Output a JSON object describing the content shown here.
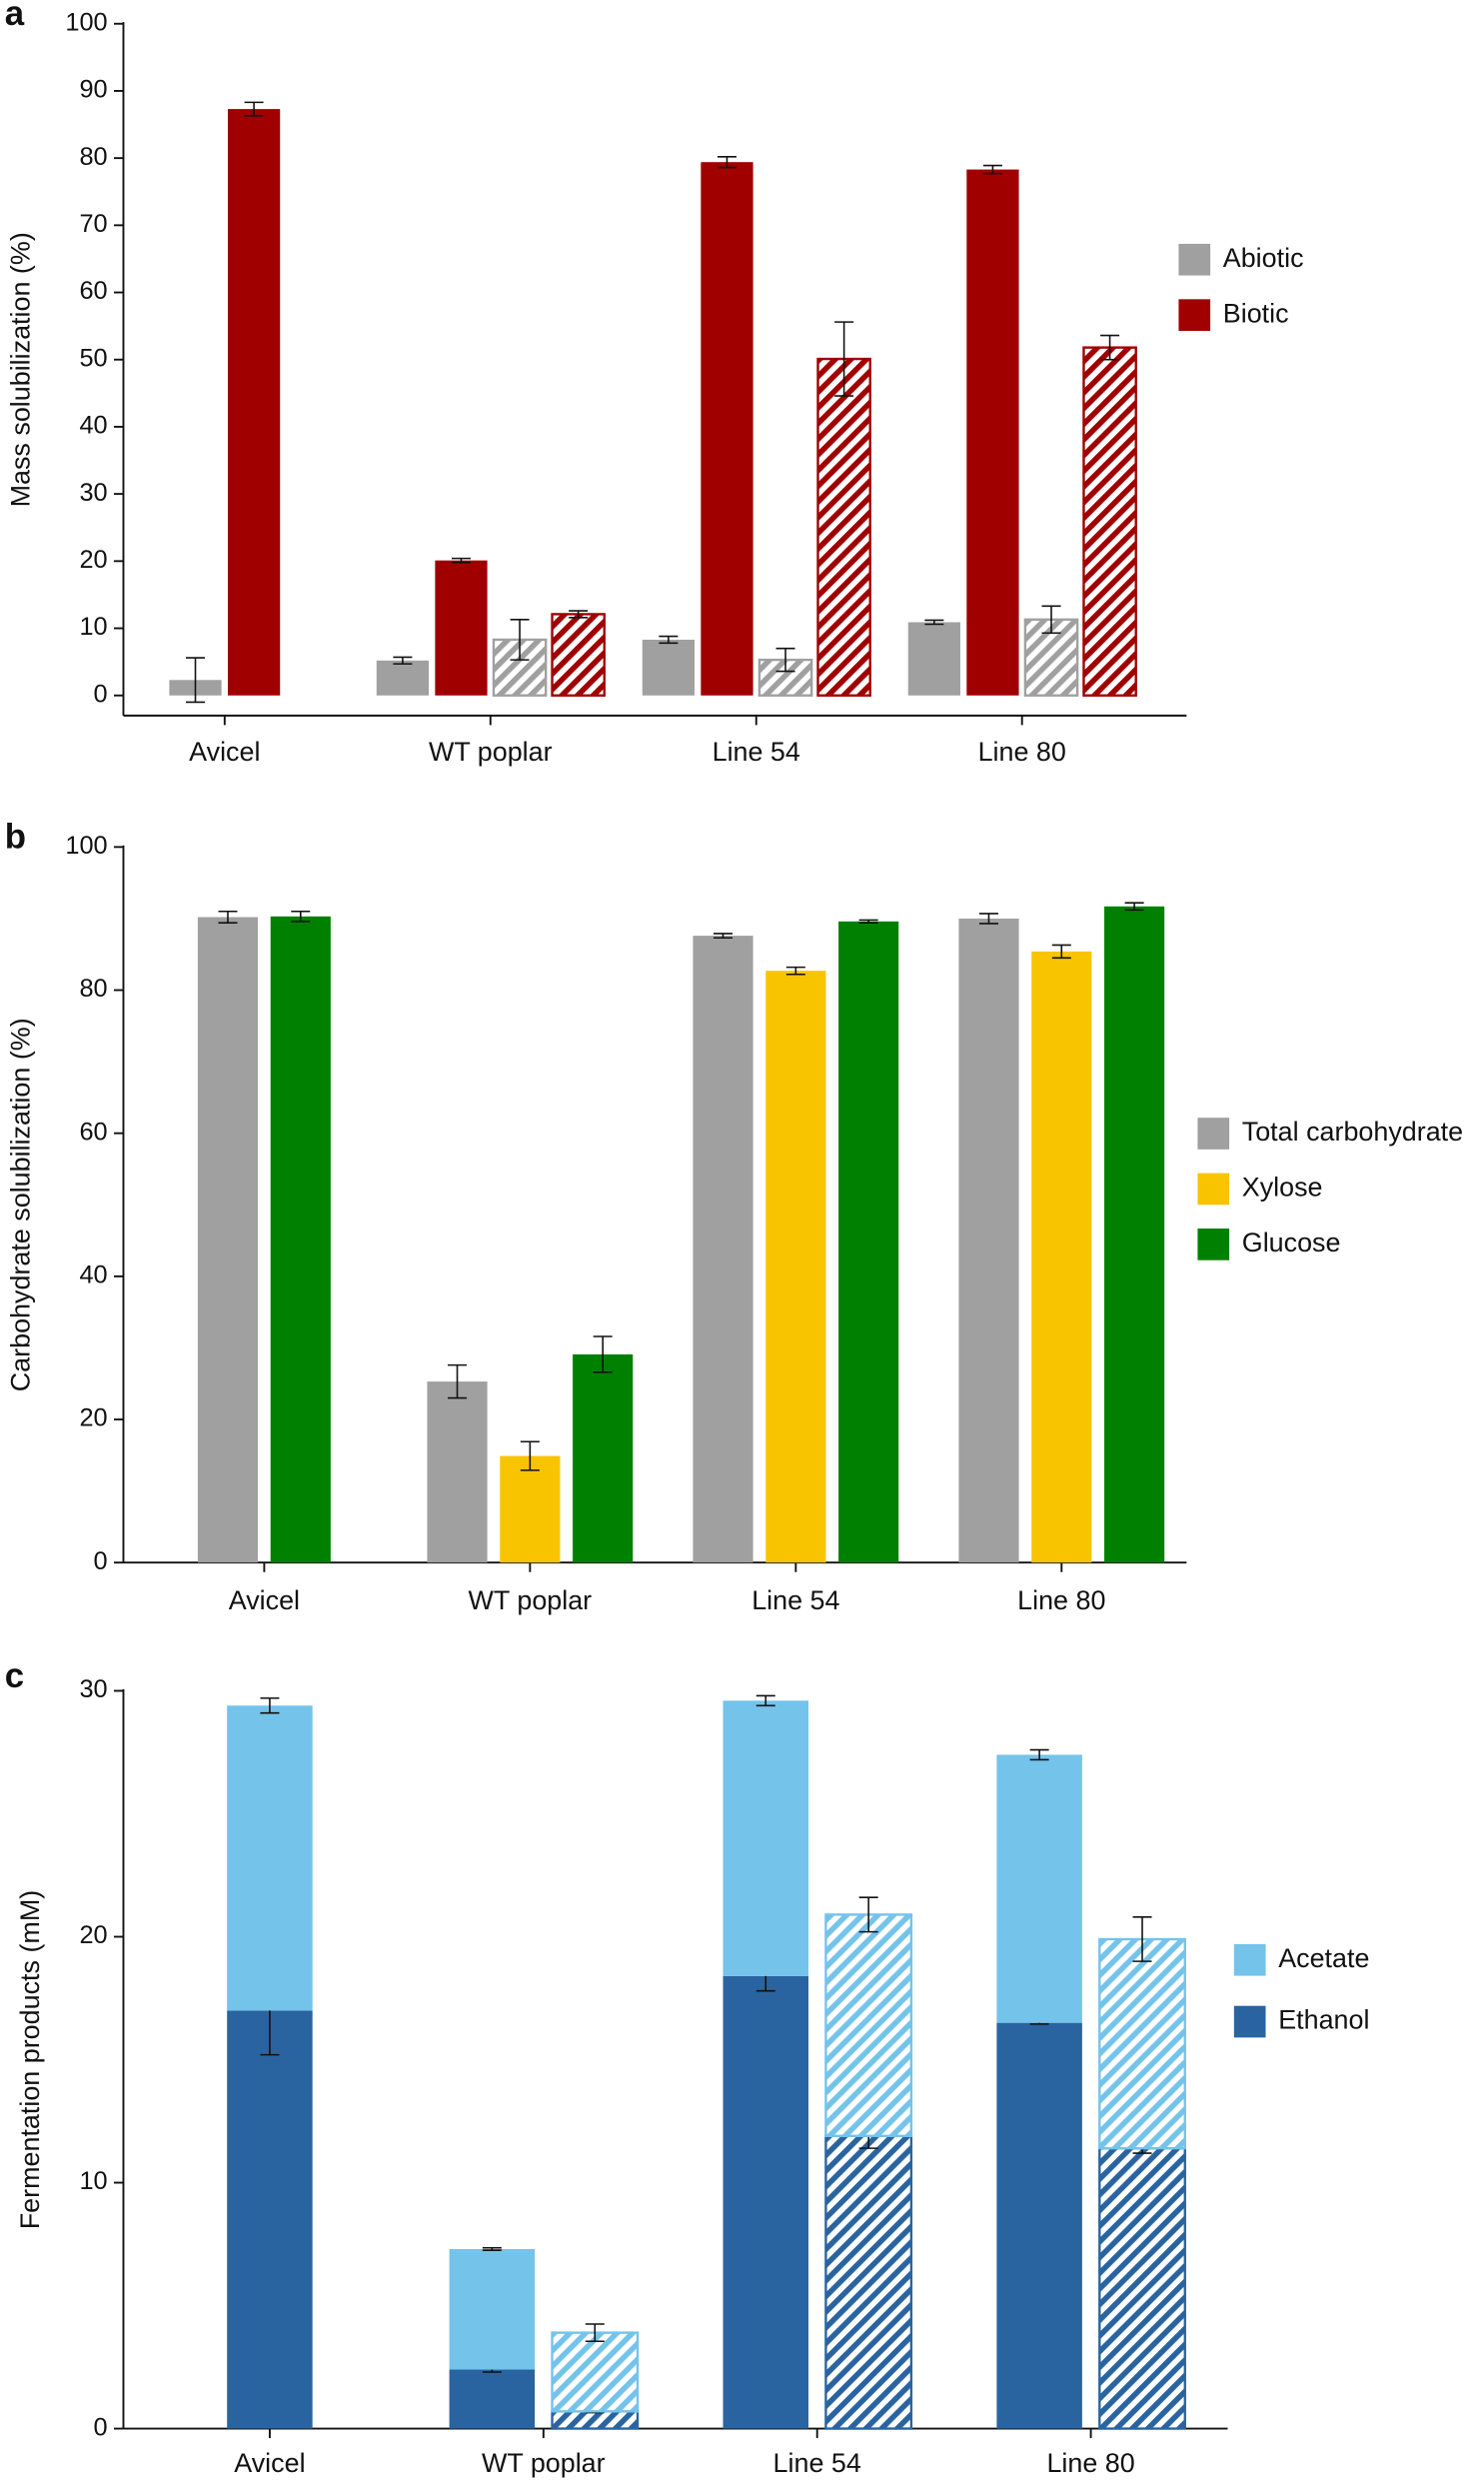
{
  "chart_data": [
    {
      "type": "bar",
      "panel_label": "a",
      "ylabel": "Mass solubilization (%)",
      "categories": [
        "Avicel",
        "WT poplar",
        "Line 54",
        "Line 80"
      ],
      "series": [
        {
          "name": "Abiotic",
          "color": "#a0a0a0",
          "values": [
            2.3,
            5.2,
            8.3,
            10.9
          ],
          "errors": [
            3.3,
            0.5,
            0.5,
            0.3
          ],
          "hatched_values": [
            null,
            8.3,
            5.3,
            11.3
          ],
          "hatched_errors": [
            null,
            3,
            1.7,
            2
          ]
        },
        {
          "name": "Biotic",
          "color": "#a00000",
          "values": [
            87.3,
            20.1,
            79.4,
            78.3
          ],
          "errors": [
            1,
            0.3,
            0.8,
            0.6
          ],
          "hatched_values": [
            null,
            12.1,
            50.1,
            51.8
          ],
          "hatched_errors": [
            null,
            0.5,
            5.5,
            1.8
          ]
        }
      ],
      "ylim": [
        -3,
        100
      ],
      "yticks": [
        0,
        10,
        20,
        30,
        40,
        50,
        60,
        70,
        80,
        90,
        100
      ]
    },
    {
      "type": "bar",
      "panel_label": "b",
      "ylabel": "Carbohydrate solubilization (%)",
      "categories": [
        "Avicel",
        "WT poplar",
        "Line 54",
        "Line 80"
      ],
      "series": [
        {
          "name": "Total carbohydrate",
          "color": "#a0a0a0",
          "values": [
            90.2,
            25.3,
            87.6,
            90.0
          ],
          "errors": [
            0.8,
            2.3,
            0.3,
            0.7
          ]
        },
        {
          "name": "Xylose",
          "color": "#f8c400",
          "values": [
            null,
            14.9,
            82.7,
            85.4
          ],
          "errors": [
            null,
            2,
            0.5,
            0.9
          ]
        },
        {
          "name": "Glucose",
          "color": "#008000",
          "values": [
            90.3,
            29.1,
            89.6,
            91.7
          ],
          "errors": [
            0.7,
            2.5,
            0.2,
            0.5
          ]
        }
      ],
      "ylim": [
        0,
        100
      ],
      "yticks": [
        0,
        20,
        40,
        60,
        80,
        100
      ]
    },
    {
      "type": "stacked_bar",
      "panel_label": "c",
      "ylabel": "Fermentation products (mM)",
      "categories": [
        "Avicel",
        "WT poplar",
        "Line 54",
        "Line 80"
      ],
      "series": [
        {
          "name": "Ethanol",
          "color": "#2a64a0",
          "values": [
            17.0,
            2.4,
            18.4,
            16.5
          ],
          "errors": [
            1.8,
            0.1,
            0.6,
            0.05
          ],
          "hatched_values": [
            null,
            0.7,
            11.9,
            11.4
          ],
          "hatched_errors": [
            null,
            0.05,
            0.5,
            0.2
          ]
        },
        {
          "name": "Acetate",
          "color": "#74c3ea",
          "values": [
            12.4,
            4.9,
            11.2,
            10.9
          ],
          "errors": [
            0.3,
            0.05,
            0.2,
            0.2
          ],
          "hatched_values": [
            null,
            3.2,
            9.0,
            8.5
          ],
          "hatched_errors": [
            null,
            0.35,
            0.7,
            0.9
          ]
        }
      ],
      "ylim": [
        0,
        30
      ],
      "yticks": [
        0,
        10,
        20,
        30
      ]
    }
  ]
}
